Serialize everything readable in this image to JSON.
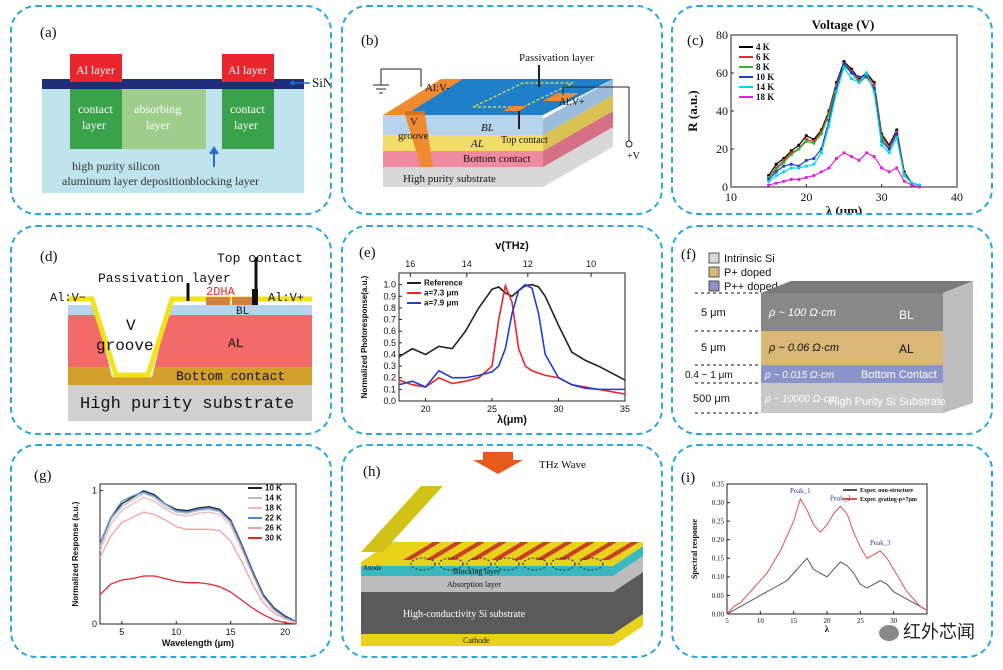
{
  "panel_a": {
    "label": "(a)",
    "al_left": "Al layer",
    "al_right": "Al layer",
    "sinx": "SiN",
    "sinx_sub": "x",
    "contact_left": [
      "contact",
      "layer"
    ],
    "absorbing": [
      "absorbing",
      "layer"
    ],
    "contact_right": [
      "contact",
      "layer"
    ],
    "silicon": [
      "high purity silicon",
      "aluminum layer deposition"
    ],
    "blocking": "blocking layer",
    "colors": {
      "al": "#e8262c",
      "contact": "#3aa24a",
      "absorbing": "#9fce8c",
      "substrate": "#bfe4ee",
      "sinx": "#1e2e78"
    }
  },
  "panel_b": {
    "label": "(b)",
    "passivation": "Passivation layer",
    "al_minus": "Al:V-",
    "al_plus": "Al:V+",
    "groove": [
      "V",
      "groove"
    ],
    "bl": "BL",
    "al": "AL",
    "top_contact": "Top contact",
    "bottom_contact": "Bottom contact",
    "substrate": "High purity substrate",
    "plus_v": "+V"
  },
  "panel_c": {
    "label": "(c)",
    "chart_data": {
      "type": "line",
      "title": "Voltage (V)",
      "xlabel": "λ (μm)",
      "ylabel": "R (a.u.)",
      "xlim": [
        10,
        40
      ],
      "ylim": [
        0,
        80
      ],
      "xticks": [
        10,
        20,
        30,
        40
      ],
      "yticks": [
        0,
        20,
        40,
        60,
        80
      ],
      "legend_position": "top-left",
      "x": [
        15,
        16,
        17,
        18,
        19,
        20,
        21,
        22,
        23,
        24,
        25,
        26,
        27,
        28,
        29,
        30,
        31,
        32,
        33,
        34,
        35
      ],
      "series": [
        {
          "name": "4 K",
          "color": "#000000",
          "values": [
            6,
            12,
            15,
            19,
            22,
            27,
            25,
            30,
            40,
            55,
            66,
            62,
            57,
            60,
            55,
            28,
            22,
            30,
            8,
            2,
            1
          ]
        },
        {
          "name": "6 K",
          "color": "#e8262c",
          "values": [
            5,
            10,
            14,
            18,
            20,
            25,
            24,
            29,
            39,
            54,
            65,
            61,
            56,
            59,
            54,
            27,
            21,
            29,
            7,
            2,
            1
          ]
        },
        {
          "name": "8 K",
          "color": "#2eb82e",
          "values": [
            5,
            9,
            13,
            17,
            20,
            24,
            23,
            28,
            38,
            53,
            64,
            60,
            55,
            58,
            52,
            26,
            20,
            28,
            7,
            2,
            1
          ]
        },
        {
          "name": "10 K",
          "color": "#1f3fd0",
          "values": [
            4,
            8,
            11,
            12,
            11,
            14,
            15,
            20,
            35,
            52,
            65,
            60,
            58,
            58,
            52,
            24,
            20,
            28,
            6,
            2,
            1
          ]
        },
        {
          "name": "14 K",
          "color": "#00d8e8",
          "values": [
            3,
            6,
            8,
            10,
            10,
            11,
            12,
            18,
            32,
            50,
            63,
            57,
            55,
            60,
            50,
            22,
            18,
            26,
            6,
            2,
            1
          ]
        },
        {
          "name": "18 K",
          "color": "#e020e0",
          "values": [
            1,
            2,
            3,
            4,
            4,
            5,
            6,
            8,
            10,
            15,
            18,
            16,
            14,
            18,
            16,
            10,
            8,
            10,
            3,
            1,
            0
          ]
        }
      ]
    }
  },
  "panel_d": {
    "label": "(d)",
    "top_contact": "Top contact",
    "passivation": "Passivation layer",
    "dha": "2DHA",
    "al_minus": "Al:V−",
    "al_plus": "Al:V+",
    "groove": [
      "V",
      "groove"
    ],
    "bl": "BL",
    "al": "AL",
    "bottom_contact": "Bottom contact",
    "substrate": "High purity substrate"
  },
  "panel_e": {
    "label": "(e)",
    "chart_data": {
      "type": "line",
      "top_axis_label": "v(THz)",
      "top_ticks": [
        16,
        14,
        12,
        10
      ],
      "xlabel": "λ(μm)",
      "ylabel": "Normalized Photoresponse(a.u.)",
      "xlim": [
        18,
        35
      ],
      "ylim": [
        0,
        1.1
      ],
      "xticks": [
        20,
        25,
        30,
        35
      ],
      "yticks": [
        0.0,
        0.1,
        0.2,
        0.3,
        0.4,
        0.5,
        0.6,
        0.7,
        0.8,
        0.9,
        1.0
      ],
      "legend_position": "top-left",
      "x": [
        18,
        19,
        20,
        21,
        22,
        23,
        24,
        25,
        25.5,
        26,
        26.5,
        27,
        27.5,
        28,
        28.5,
        29,
        30,
        31,
        32,
        33,
        34,
        35
      ],
      "series": [
        {
          "name": "Reference",
          "color": "#222222",
          "values": [
            0.38,
            0.45,
            0.4,
            0.47,
            0.45,
            0.6,
            0.8,
            0.96,
            0.98,
            0.93,
            0.9,
            0.95,
            0.99,
            1.0,
            0.98,
            0.9,
            0.65,
            0.42,
            0.35,
            0.3,
            0.24,
            0.18
          ]
        },
        {
          "name": "a=7.3 μm",
          "color": "#e8262c",
          "values": [
            0.18,
            0.14,
            0.12,
            0.2,
            0.15,
            0.17,
            0.2,
            0.3,
            0.7,
            0.99,
            0.85,
            0.45,
            0.3,
            0.26,
            0.24,
            0.22,
            0.2,
            0.14,
            0.12,
            0.1,
            0.08,
            0.06
          ]
        },
        {
          "name": "a=7.9 μm",
          "color": "#1f3fd0",
          "values": [
            0.14,
            0.17,
            0.12,
            0.26,
            0.2,
            0.2,
            0.22,
            0.25,
            0.3,
            0.45,
            0.75,
            0.95,
            1.0,
            0.97,
            0.75,
            0.4,
            0.2,
            0.14,
            0.11,
            0.1,
            0.1,
            0.1
          ]
        }
      ]
    }
  },
  "panel_f": {
    "label": "(f)",
    "legend": [
      {
        "name": "Intrinsic Si",
        "color": "#d8d8d8"
      },
      {
        "name": "P+ doped",
        "color": "#d9b774"
      },
      {
        "name": "P++ doped",
        "color": "#8a94c8"
      }
    ],
    "thickness": [
      "5 μm",
      "5 μm",
      "0.4 ~ 1 μm",
      "500 μm"
    ],
    "resistivity": [
      "ρ ~ 100 Ω·cm",
      "ρ ~ 0.06 Ω·cm",
      "ρ ~ 0.015 Ω·cm",
      "ρ ~ 10000 Ω·cm"
    ],
    "layers": [
      "BL",
      "AL",
      "Bottom Contact",
      "High Purity Si Substrate"
    ]
  },
  "panel_g": {
    "label": "(g)",
    "chart_data": {
      "type": "line",
      "xlabel": "Wavelength (μm)",
      "ylabel": "Normalized Response (a.u.)",
      "xlim": [
        3,
        21
      ],
      "ylim": [
        0,
        1.05
      ],
      "xticks": [
        5,
        10,
        15,
        20
      ],
      "yticks": [
        0,
        1
      ],
      "legend_position": "top-right",
      "x": [
        3,
        4,
        5,
        6,
        7,
        8,
        9,
        10,
        11,
        12,
        13,
        14,
        15,
        16,
        17,
        18,
        19,
        20,
        21
      ],
      "series": [
        {
          "name": "10 K",
          "color": "#222222",
          "values": [
            0.6,
            0.8,
            0.9,
            0.95,
            1.0,
            0.97,
            0.9,
            0.86,
            0.85,
            0.87,
            0.88,
            0.86,
            0.78,
            0.6,
            0.4,
            0.22,
            0.12,
            0.06,
            0.02
          ]
        },
        {
          "name": "14 K",
          "color": "#bbbbbb",
          "values": [
            0.58,
            0.78,
            0.88,
            0.93,
            0.98,
            0.95,
            0.88,
            0.84,
            0.83,
            0.85,
            0.86,
            0.84,
            0.76,
            0.58,
            0.38,
            0.21,
            0.11,
            0.05,
            0.02
          ]
        },
        {
          "name": "18 K",
          "color": "#f2b8b8",
          "values": [
            0.55,
            0.75,
            0.85,
            0.9,
            0.95,
            0.92,
            0.86,
            0.82,
            0.81,
            0.83,
            0.84,
            0.82,
            0.74,
            0.56,
            0.37,
            0.2,
            0.1,
            0.05,
            0.02
          ]
        },
        {
          "name": "22 K",
          "color": "#4a8ad8",
          "values": [
            0.6,
            0.8,
            0.92,
            0.96,
            0.99,
            0.96,
            0.9,
            0.85,
            0.84,
            0.86,
            0.87,
            0.85,
            0.77,
            0.59,
            0.39,
            0.21,
            0.11,
            0.05,
            0.02
          ]
        },
        {
          "name": "26 K",
          "color": "#f4a0a0",
          "values": [
            0.5,
            0.66,
            0.76,
            0.8,
            0.84,
            0.82,
            0.78,
            0.73,
            0.71,
            0.71,
            0.71,
            0.7,
            0.62,
            0.47,
            0.3,
            0.16,
            0.08,
            0.04,
            0.01
          ]
        },
        {
          "name": "30 K",
          "color": "#e8262c",
          "values": [
            0.22,
            0.3,
            0.33,
            0.34,
            0.36,
            0.36,
            0.34,
            0.32,
            0.31,
            0.31,
            0.3,
            0.28,
            0.24,
            0.18,
            0.12,
            0.07,
            0.03,
            0.01,
            0.0
          ]
        }
      ]
    }
  },
  "panel_h": {
    "label": "(h)",
    "wave": "THz Wave",
    "anode": "Anode",
    "blocking": "Blocking layer",
    "absorption": "Absorption layer",
    "substrate": "High-conductivity Si substrate",
    "cathode": "Cathode"
  },
  "panel_i": {
    "label": "(i)",
    "chart_data": {
      "type": "line",
      "xlabel": "λ",
      "ylabel": "Spectral response",
      "xlim": [
        5,
        35
      ],
      "ylim": [
        0.0,
        0.35
      ],
      "xticks": [
        5,
        10,
        15,
        20,
        25,
        30
      ],
      "yticks": [
        0.0,
        0.05,
        0.1,
        0.15,
        0.2,
        0.25,
        0.3,
        0.35
      ],
      "legend_position": "top-right",
      "annotations": [
        "Peak_1",
        "Peak_2",
        "Peak_3"
      ],
      "x": [
        5,
        6,
        7,
        8,
        9,
        10,
        11,
        12,
        13,
        14,
        15,
        16,
        17,
        18,
        19,
        20,
        21,
        22,
        23,
        24,
        25,
        26,
        27,
        28,
        29,
        30,
        31,
        32,
        33,
        34,
        35
      ],
      "series": [
        {
          "name": "Exper. non-structure",
          "color": "#555555",
          "values": [
            0.0,
            0.01,
            0.02,
            0.03,
            0.04,
            0.05,
            0.06,
            0.07,
            0.08,
            0.09,
            0.11,
            0.13,
            0.15,
            0.12,
            0.11,
            0.1,
            0.12,
            0.14,
            0.13,
            0.11,
            0.08,
            0.07,
            0.08,
            0.09,
            0.08,
            0.06,
            0.05,
            0.04,
            0.03,
            0.02,
            0.01
          ]
        },
        {
          "name": "Exper. grating-p=7μm",
          "color": "#e05050",
          "values": [
            0.0,
            0.02,
            0.03,
            0.05,
            0.07,
            0.09,
            0.11,
            0.14,
            0.17,
            0.21,
            0.25,
            0.31,
            0.28,
            0.24,
            0.22,
            0.24,
            0.27,
            0.29,
            0.27,
            0.22,
            0.18,
            0.15,
            0.16,
            0.17,
            0.15,
            0.12,
            0.09,
            0.06,
            0.04,
            0.02,
            0.01
          ]
        }
      ]
    }
  },
  "watermark": "红外芯闻"
}
